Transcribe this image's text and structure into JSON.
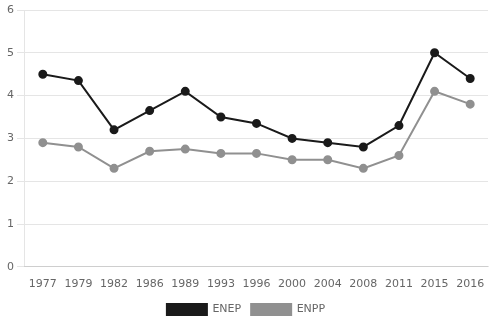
{
  "chart_data": {
    "type": "line",
    "categories": [
      "1977",
      "1979",
      "1982",
      "1986",
      "1989",
      "1993",
      "1996",
      "2000",
      "2004",
      "2008",
      "2011",
      "2015",
      "2016"
    ],
    "series": [
      {
        "name": "ENEP",
        "color": "#1a1a1a",
        "marker": "circle",
        "values": [
          4.5,
          4.35,
          3.2,
          3.65,
          4.1,
          3.5,
          3.35,
          3.0,
          2.9,
          2.8,
          3.3,
          5.0,
          4.4
        ]
      },
      {
        "name": "ENPP",
        "color": "#909090",
        "marker": "circle",
        "values": [
          2.9,
          2.8,
          2.3,
          2.7,
          2.75,
          2.65,
          2.65,
          2.5,
          2.5,
          2.3,
          2.6,
          4.1,
          3.8
        ]
      }
    ],
    "ylim": [
      0,
      6
    ],
    "yticks": [
      0,
      1,
      2,
      3,
      4,
      5,
      6
    ],
    "grid": true,
    "legend": "bottom"
  }
}
